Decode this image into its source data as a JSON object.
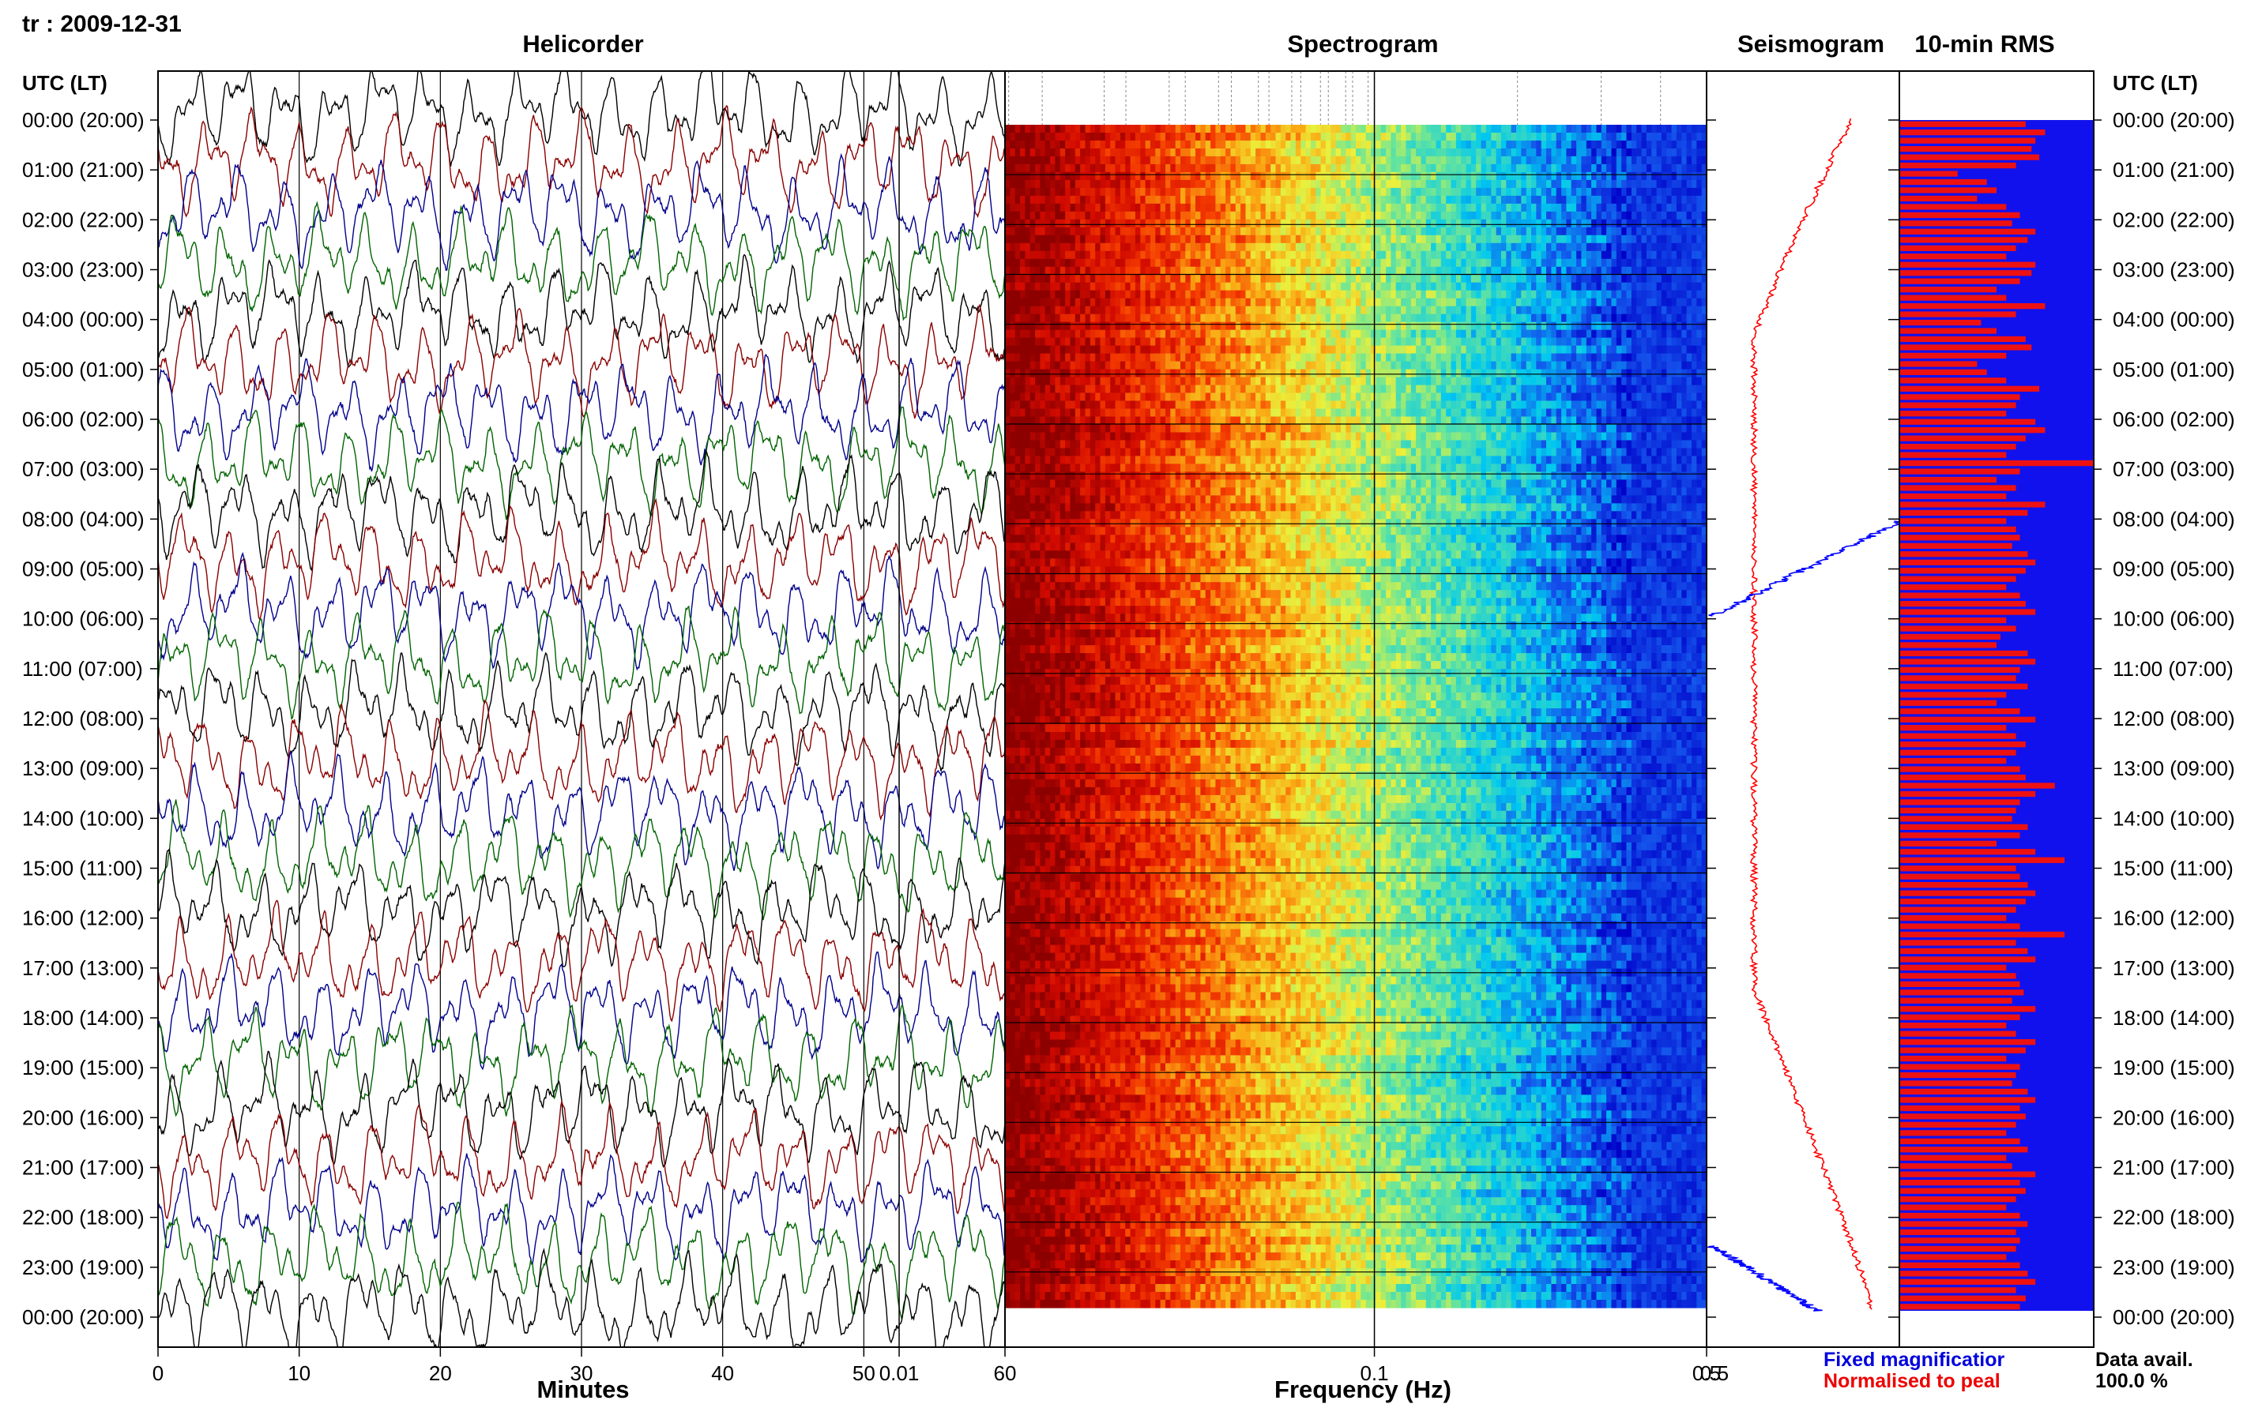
{
  "page_title": "tr : 2009-12-31",
  "panels": {
    "helicorder": "Helicorder",
    "spectrogram": "Spectrogram",
    "seismogram": "Seismogram",
    "rms": "10-min RMS"
  },
  "axis_header_left": "UTC (LT)",
  "axis_header_right": "UTC (LT)",
  "x_labels": {
    "minutes": "Minutes",
    "frequency": "Frequency (Hz)"
  },
  "legend": {
    "fixed": "Fixed magnificatior",
    "normalised": "Normalised to peal",
    "data_avail_label": "Data avail.",
    "data_avail_value": "100.0 %"
  },
  "colors": {
    "trace_cycle": [
      "#000000",
      "#8b0000",
      "#00008b",
      "#006400"
    ],
    "fixed_trace": "#0000ff",
    "normalised_trace": "#ff0000",
    "rms_bar": "#ee1111",
    "rms_background": "#1111ee",
    "fixed_text": "#0000dd",
    "normalised_text": "#ee0000"
  },
  "chart_data": [
    {
      "type": "line",
      "name": "helicorder",
      "title": "Helicorder",
      "xlabel": "Minutes",
      "x_ticks": [
        "0",
        "10",
        "20",
        "30",
        "40",
        "50",
        "60"
      ],
      "xlim": [
        0,
        60
      ],
      "hour_labels": [
        "00:00 (20:00)",
        "01:00 (21:00)",
        "02:00 (22:00)",
        "03:00 (23:00)",
        "04:00 (00:00)",
        "05:00 (01:00)",
        "06:00 (02:00)",
        "07:00 (03:00)",
        "08:00 (04:00)",
        "09:00 (05:00)",
        "10:00 (06:00)",
        "11:00 (07:00)",
        "12:00 (08:00)",
        "13:00 (09:00)",
        "14:00 (10:00)",
        "15:00 (11:00)",
        "16:00 (12:00)",
        "17:00 (13:00)",
        "18:00 (14:00)",
        "19:00 (15:00)",
        "20:00 (16:00)",
        "21:00 (17:00)",
        "22:00 (18:00)",
        "23:00 (19:00)",
        "00:00 (20:00)"
      ],
      "grid": true
    },
    {
      "type": "heatmap",
      "name": "spectrogram",
      "title": "Spectrogram",
      "xlabel": "Frequency (Hz)",
      "x_scale": "log",
      "x_ticks": [
        "60",
        "0.01",
        "0.1",
        "0.5"
      ],
      "xlim": [
        0.0167,
        0.5
      ],
      "color_scale": "dark red (high power, low frequency) to red, orange, yellow, cyan, blue (low power, high frequency)"
    },
    {
      "type": "line",
      "name": "seismogram",
      "title": "Seismogram",
      "x_ticks": [
        "0.5"
      ],
      "series": [
        {
          "name": "Fixed magnificatior",
          "color": "#0000ff"
        },
        {
          "name": "Normalised to peal",
          "color": "#ff0000"
        }
      ]
    },
    {
      "type": "bar",
      "name": "rms",
      "title": "10-min RMS",
      "values_relative": [
        0.65,
        0.75,
        0.7,
        0.68,
        0.72,
        0.6,
        0.3,
        0.45,
        0.5,
        0.4,
        0.55,
        0.62,
        0.58,
        0.7,
        0.66,
        0.6,
        0.55,
        0.7,
        0.68,
        0.62,
        0.5,
        0.55,
        0.75,
        0.6,
        0.42,
        0.5,
        0.65,
        0.68,
        0.55,
        0.4,
        0.45,
        0.55,
        0.72,
        0.62,
        0.6,
        0.55,
        0.7,
        0.75,
        0.65,
        0.6,
        0.55,
        1.0,
        0.62,
        0.5,
        0.6,
        0.55,
        0.75,
        0.66,
        0.55,
        0.6,
        0.62,
        0.58,
        0.66,
        0.7,
        0.65,
        0.6,
        0.55,
        0.62,
        0.65,
        0.7,
        0.55,
        0.6,
        0.52,
        0.5,
        0.66,
        0.7,
        0.62,
        0.6,
        0.66,
        0.55,
        0.5,
        0.62,
        0.7,
        0.55,
        0.6,
        0.65,
        0.6,
        0.55,
        0.62,
        0.65,
        0.8,
        0.7,
        0.62,
        0.6,
        0.58,
        0.66,
        0.62,
        0.5,
        0.7,
        0.85,
        0.6,
        0.62,
        0.66,
        0.7,
        0.65,
        0.6,
        0.55,
        0.62,
        0.85,
        0.6,
        0.66,
        0.7,
        0.55,
        0.6,
        0.62,
        0.64,
        0.58,
        0.7,
        0.62,
        0.55,
        0.6,
        0.7,
        0.65,
        0.55,
        0.62,
        0.6,
        0.58,
        0.66,
        0.7,
        0.62,
        0.65,
        0.6,
        0.55,
        0.62,
        0.66,
        0.55,
        0.58,
        0.7,
        0.62,
        0.65,
        0.6,
        0.55,
        0.62,
        0.66,
        0.6,
        0.62,
        0.6,
        0.55,
        0.62,
        0.66,
        0.7,
        0.6,
        0.65,
        0.62
      ],
      "bars_per_hour": 6
    }
  ]
}
